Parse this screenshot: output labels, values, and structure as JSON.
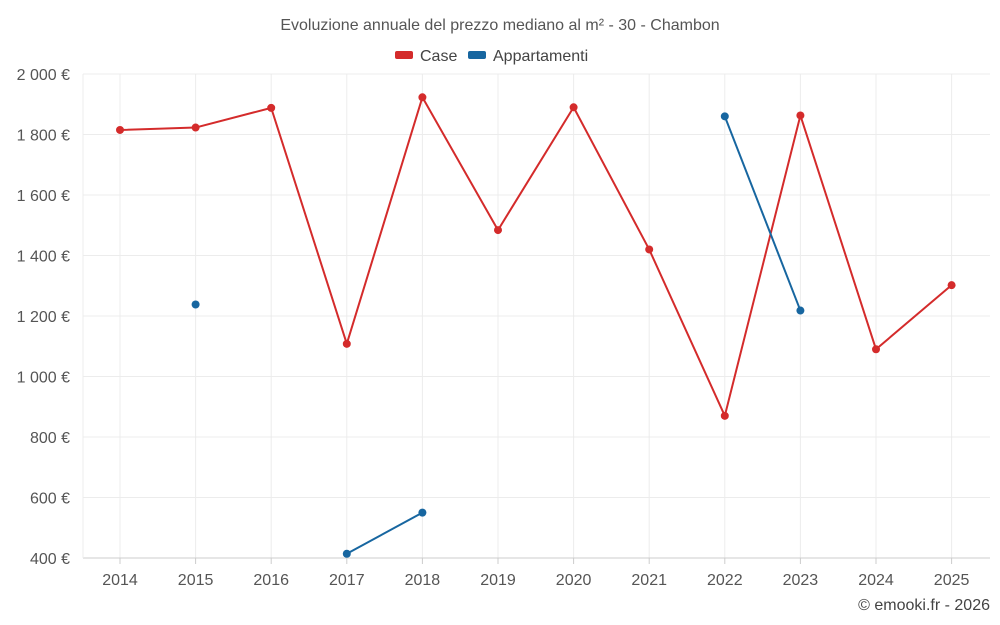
{
  "chart_data": {
    "type": "line",
    "title": "Evoluzione annuale del prezzo mediano al m² - 30 - Chambon",
    "categories": [
      "2014",
      "2015",
      "2016",
      "2017",
      "2018",
      "2019",
      "2020",
      "2021",
      "2022",
      "2023",
      "2024",
      "2025"
    ],
    "ylim": [
      400,
      2000
    ],
    "yticks": [
      400,
      600,
      800,
      1000,
      1200,
      1400,
      1600,
      1800,
      2000
    ],
    "ytick_labels": [
      "400 €",
      "600 €",
      "800 €",
      "1 000 €",
      "1 200 €",
      "1 400 €",
      "1 600 €",
      "1 800 €",
      "2 000 €"
    ],
    "grid": true,
    "legend_position": "top-center",
    "series": [
      {
        "name": "Case",
        "color": "#d42b2b",
        "values": [
          1815,
          1823,
          1888,
          1108,
          1923,
          1484,
          1890,
          1420,
          870,
          1863,
          1090,
          1302
        ]
      },
      {
        "name": "Appartamenti",
        "color": "#1766a0",
        "values": [
          null,
          1238,
          null,
          414,
          550,
          null,
          null,
          null,
          1860,
          1218,
          null,
          null
        ]
      }
    ]
  },
  "credit": "© emooki.fr - 2026"
}
